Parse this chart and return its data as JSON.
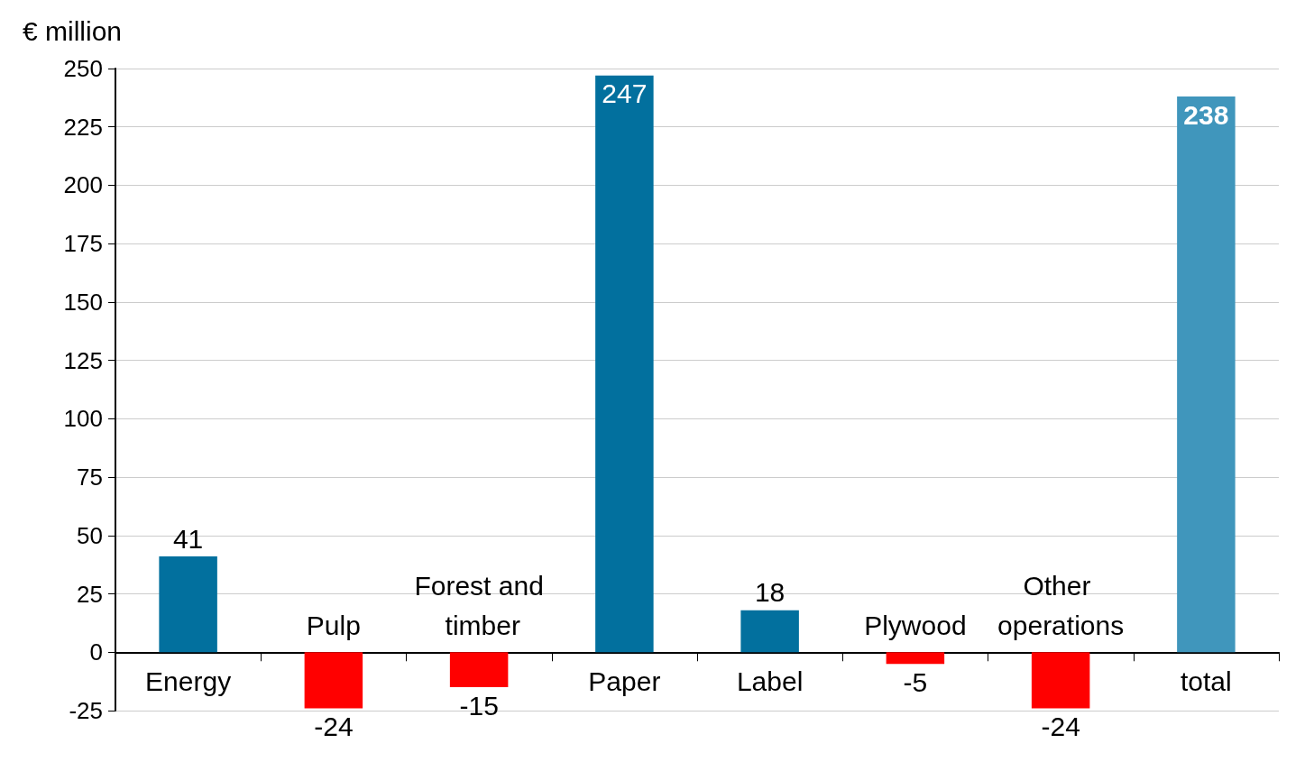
{
  "chart_data": {
    "type": "bar",
    "ylabel": "€ million",
    "categories": [
      "Energy",
      "Pulp",
      "Forest and timber",
      "Paper",
      "Label",
      "Plywood",
      "Other operations",
      "total"
    ],
    "values": [
      41,
      -24,
      -15,
      247,
      18,
      -5,
      -24,
      238
    ],
    "colors": [
      "#02709e",
      "#ff0000",
      "#ff0000",
      "#02709e",
      "#02709e",
      "#ff0000",
      "#ff0000",
      "#4096bc"
    ],
    "ylim": [
      -25,
      250
    ],
    "yticks": [
      -25,
      0,
      25,
      50,
      75,
      100,
      125,
      150,
      175,
      200,
      225,
      250
    ],
    "grid": "y",
    "data_labels": true
  }
}
